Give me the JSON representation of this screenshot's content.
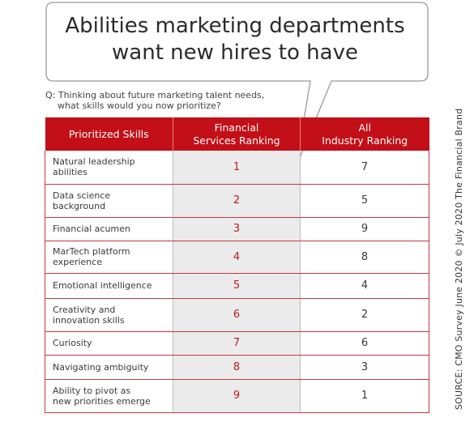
{
  "title": {
    "line1": "Abilities marketing departments",
    "line2": "want new hires to have"
  },
  "question": {
    "line1": "Q: Thinking about future marketing talent needs,",
    "line2": "what skills would you now prioritize?"
  },
  "source": "SOURCE:  CMO Survey June 2020 © July 2020 The Financial Brand",
  "colors": {
    "header": "#c30f17",
    "financial_column": "#ebebeb",
    "rank_accent": "#c01a20"
  },
  "chart_data": {
    "type": "table",
    "headers": [
      [
        "Prioritized Skills"
      ],
      [
        "Financial",
        "Services Ranking"
      ],
      [
        "All",
        "Industry Ranking"
      ]
    ],
    "rows": [
      {
        "skill": [
          "Natural leadership",
          "abilities"
        ],
        "financial": "1",
        "all": "7"
      },
      {
        "skill": [
          "Data science",
          "background"
        ],
        "financial": "2",
        "all": "5"
      },
      {
        "skill": [
          "Financial acumen"
        ],
        "financial": "3",
        "all": "9"
      },
      {
        "skill": [
          "MarTech platform",
          "experience"
        ],
        "financial": "4",
        "all": "8"
      },
      {
        "skill": [
          "Emotional intelligence"
        ],
        "financial": "5",
        "all": "4"
      },
      {
        "skill": [
          "Creativity and",
          "innovation skills"
        ],
        "financial": "6",
        "all": "2"
      },
      {
        "skill": [
          "Curiosity"
        ],
        "financial": "7",
        "all": "6"
      },
      {
        "skill": [
          "Navigating ambiguity"
        ],
        "financial": "8",
        "all": "3"
      },
      {
        "skill": [
          "Ability to pivot as",
          "new priorities emerge"
        ],
        "financial": "9",
        "all": "1"
      }
    ]
  }
}
